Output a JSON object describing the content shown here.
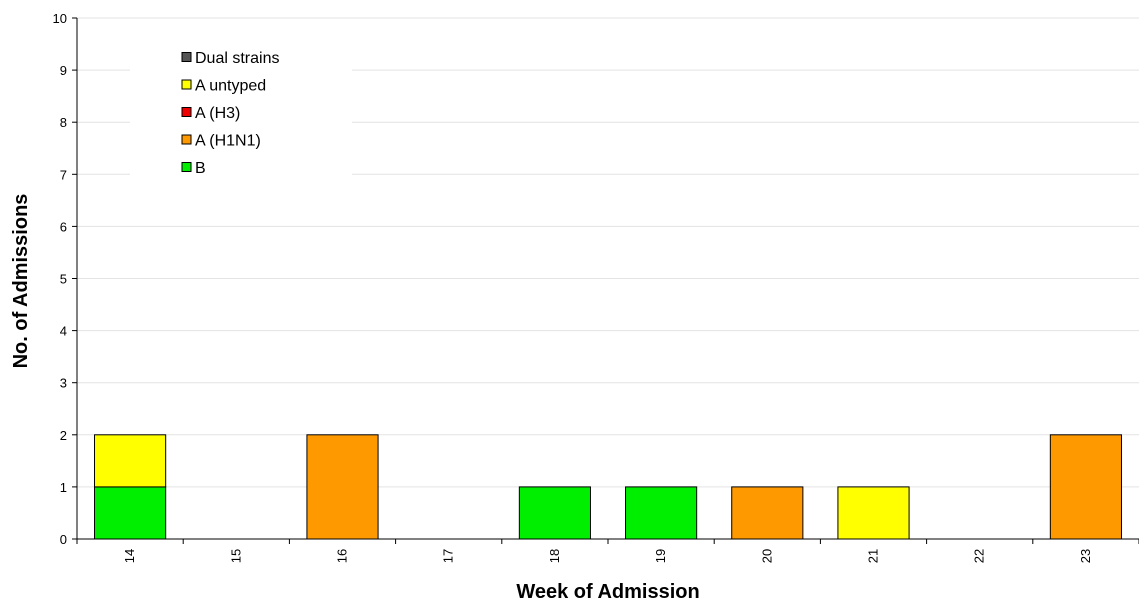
{
  "chart_data": {
    "type": "bar",
    "stacked": true,
    "title": "",
    "xlabel": "Week of Admission",
    "ylabel": "No. of Admissions",
    "ylim": [
      0,
      10
    ],
    "yticks": [
      0,
      1,
      2,
      3,
      4,
      5,
      6,
      7,
      8,
      9,
      10
    ],
    "grid": true,
    "legend_position": "top-left",
    "categories": [
      "14",
      "15",
      "16",
      "17",
      "18",
      "19",
      "20",
      "21",
      "22",
      "23"
    ],
    "series": [
      {
        "name": "B",
        "color": "#00ee00",
        "values": [
          1,
          0,
          0,
          0,
          1,
          1,
          0,
          0,
          0,
          0
        ]
      },
      {
        "name": "A (H1N1)",
        "color": "#ff9900",
        "values": [
          0,
          0,
          2,
          0,
          0,
          0,
          1,
          0,
          0,
          2
        ]
      },
      {
        "name": "A (H3)",
        "color": "#ee0000",
        "values": [
          0,
          0,
          0,
          0,
          0,
          0,
          0,
          0,
          0,
          0
        ]
      },
      {
        "name": "A untyped",
        "color": "#ffff00",
        "values": [
          1,
          0,
          0,
          0,
          0,
          0,
          0,
          1,
          0,
          0
        ]
      },
      {
        "name": "Dual strains",
        "color": "#555555",
        "values": [
          0,
          0,
          0,
          0,
          0,
          0,
          0,
          0,
          0,
          0
        ]
      }
    ],
    "legend_order": [
      "Dual strains",
      "A untyped",
      "A (H3)",
      "A (H1N1)",
      "B"
    ]
  }
}
